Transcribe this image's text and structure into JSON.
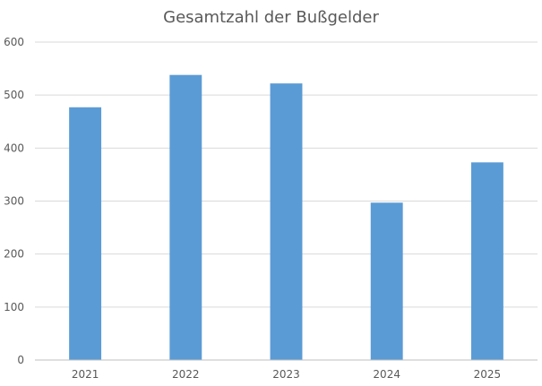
{
  "chart_data": {
    "type": "bar",
    "title": "Gesamtzahl der Bußgelder",
    "categories": [
      "2021",
      "2022",
      "2023",
      "2024",
      "2025"
    ],
    "values": [
      477,
      538,
      522,
      297,
      373
    ],
    "ylim": [
      0,
      600
    ],
    "yticks": [
      0,
      100,
      200,
      300,
      400,
      500,
      600
    ],
    "grid": true,
    "legend": "none",
    "colors": {
      "bar": "#5B9BD5",
      "grid": "#D9D9D9",
      "axis": "#BFBFBF",
      "text": "#595959"
    }
  }
}
